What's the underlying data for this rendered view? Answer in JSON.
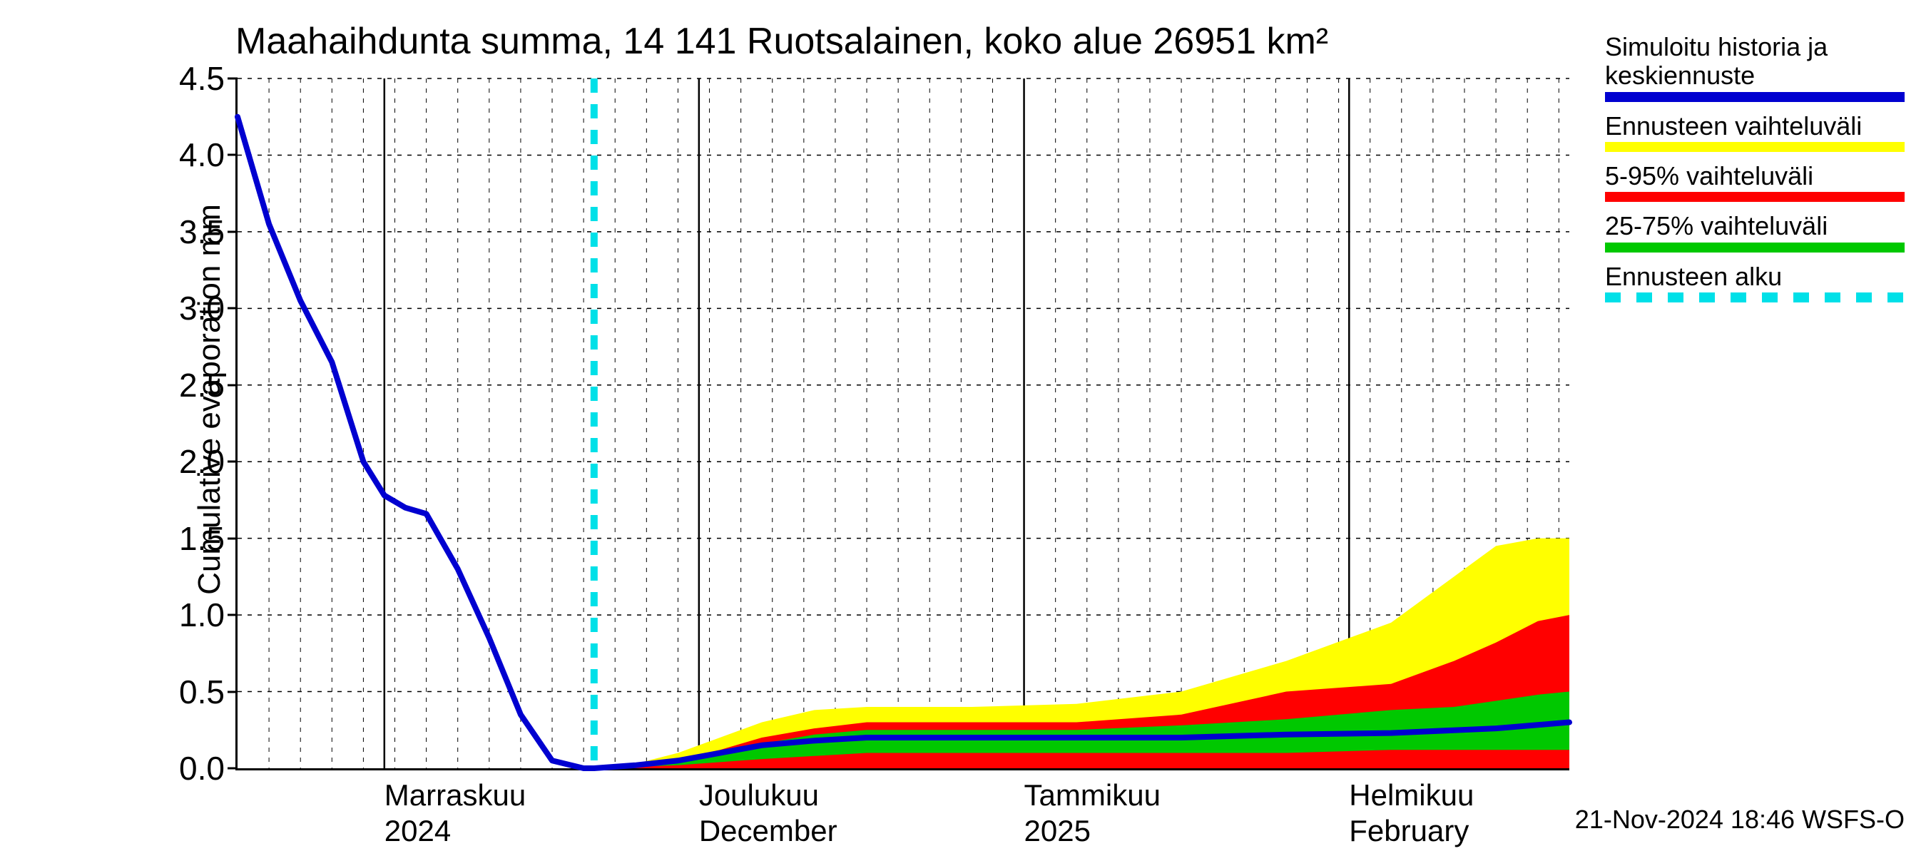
{
  "chart": {
    "type": "line_with_bands",
    "title": "Maahaihdunta summa, 14 141 Ruotsalainen, koko alue 26951 km²",
    "ylabel": "Cumulative evaporation   mm",
    "background_color": "#ffffff",
    "axis_color": "#000000",
    "grid_color": "#000000",
    "grid_dash": "6,8",
    "title_fontsize": 52,
    "label_fontsize": 46,
    "ylim": [
      0,
      4.5
    ],
    "ytick_step": 0.5,
    "yticks": [
      "0.0",
      "0.5",
      "1.0",
      "1.5",
      "2.0",
      "2.5",
      "3.0",
      "3.5",
      "4.0",
      "4.5"
    ],
    "xlim_days": [
      0,
      127
    ],
    "minor_x_step_days": 3,
    "major_months": [
      {
        "day": 14,
        "line1": "Marraskuu",
        "line2": "2024"
      },
      {
        "day": 44,
        "line1": "Joulukuu",
        "line2": "December"
      },
      {
        "day": 75,
        "line1": "Tammikuu",
        "line2": "2025"
      },
      {
        "day": 106,
        "line1": "Helmikuu",
        "line2": "February"
      }
    ],
    "forecast_start_day": 34,
    "forecast_start_color": "#00e0e8",
    "colors": {
      "history": "#0000d0",
      "full_range": "#ffff00",
      "p5_95": "#ff0000",
      "p25_75": "#00c800"
    },
    "line_width": 8,
    "history": {
      "x": [
        0,
        3,
        6,
        9,
        12,
        14,
        16,
        18,
        21,
        24,
        27,
        30,
        33,
        34
      ],
      "y": [
        4.25,
        3.55,
        3.05,
        2.65,
        2.0,
        1.78,
        1.7,
        1.66,
        1.3,
        0.85,
        0.35,
        0.05,
        0.0,
        0.0
      ]
    },
    "median": {
      "x": [
        34,
        38,
        42,
        46,
        50,
        55,
        60,
        70,
        80,
        90,
        100,
        110,
        120,
        127
      ],
      "y": [
        0.0,
        0.02,
        0.05,
        0.1,
        0.15,
        0.18,
        0.2,
        0.2,
        0.2,
        0.2,
        0.22,
        0.23,
        0.26,
        0.3
      ]
    },
    "bands": {
      "x": [
        34,
        38,
        42,
        46,
        50,
        55,
        60,
        70,
        80,
        90,
        100,
        110,
        116,
        120,
        124,
        127
      ],
      "full_lo": [
        0.0,
        0.0,
        0.0,
        0.0,
        0.0,
        0.0,
        0.0,
        0.0,
        0.0,
        0.0,
        0.0,
        0.0,
        0.0,
        0.0,
        0.0,
        0.0
      ],
      "full_hi": [
        0.0,
        0.03,
        0.1,
        0.2,
        0.3,
        0.38,
        0.4,
        0.4,
        0.42,
        0.5,
        0.7,
        0.95,
        1.25,
        1.45,
        1.5,
        1.5
      ],
      "p5_lo": [
        0.0,
        0.0,
        0.0,
        0.0,
        0.0,
        0.0,
        0.0,
        0.0,
        0.0,
        0.0,
        0.0,
        0.0,
        0.0,
        0.0,
        0.0,
        0.0
      ],
      "p5_hi": [
        0.0,
        0.02,
        0.06,
        0.12,
        0.2,
        0.26,
        0.3,
        0.3,
        0.3,
        0.35,
        0.5,
        0.55,
        0.7,
        0.82,
        0.96,
        1.0
      ],
      "p25_lo": [
        0.0,
        0.01,
        0.02,
        0.04,
        0.06,
        0.08,
        0.1,
        0.1,
        0.1,
        0.1,
        0.1,
        0.12,
        0.12,
        0.12,
        0.12,
        0.12
      ],
      "p25_hi": [
        0.0,
        0.02,
        0.05,
        0.1,
        0.16,
        0.22,
        0.25,
        0.25,
        0.25,
        0.28,
        0.32,
        0.38,
        0.4,
        0.44,
        0.48,
        0.5
      ]
    }
  },
  "legend": {
    "items": [
      {
        "label": "Simuloitu historia ja keskiennuste",
        "type": "solid",
        "color": "#0000d0"
      },
      {
        "label": "Ennusteen vaihteluväli",
        "type": "solid",
        "color": "#ffff00"
      },
      {
        "label": "5-95% vaihteluväli",
        "type": "solid",
        "color": "#ff0000"
      },
      {
        "label": "25-75% vaihteluväli",
        "type": "solid",
        "color": "#00c800"
      },
      {
        "label": "Ennusteen alku",
        "type": "dash",
        "color": "#00e0e8"
      }
    ]
  },
  "timestamp": "21-Nov-2024 18:46 WSFS-O"
}
